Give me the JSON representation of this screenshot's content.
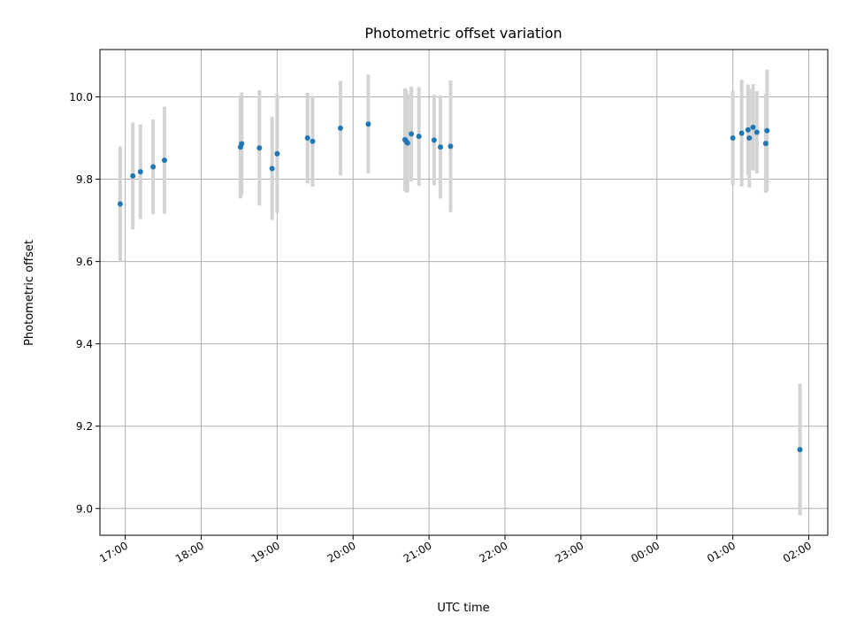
{
  "chart_data": {
    "type": "scatter",
    "title": "Photometric offset variation",
    "xlabel": "UTC time",
    "ylabel": "Photometric offset",
    "grid": true,
    "xlim": [
      "16:40",
      "02:15"
    ],
    "ylim": [
      8.935,
      10.115
    ],
    "x_ticks": [
      "17:00",
      "18:00",
      "19:00",
      "20:00",
      "21:00",
      "22:00",
      "23:00",
      "00:00",
      "01:00",
      "02:00"
    ],
    "y_ticks": [
      "9.0",
      "9.2",
      "9.4",
      "9.6",
      "9.8",
      "10.0"
    ],
    "marker_color": "#1f77b4",
    "errorbar_color": "#d3d3d3",
    "points": [
      {
        "t": "16:56",
        "y": 9.74,
        "err": 0.14
      },
      {
        "t": "17:06",
        "y": 9.808,
        "err": 0.13
      },
      {
        "t": "17:12",
        "y": 9.818,
        "err": 0.115
      },
      {
        "t": "17:22",
        "y": 9.83,
        "err": 0.115
      },
      {
        "t": "17:31",
        "y": 9.846,
        "err": 0.13
      },
      {
        "t": "18:31",
        "y": 9.878,
        "err": 0.125
      },
      {
        "t": "18:32",
        "y": 9.886,
        "err": 0.125
      },
      {
        "t": "18:46",
        "y": 9.876,
        "err": 0.14
      },
      {
        "t": "18:56",
        "y": 9.826,
        "err": 0.125
      },
      {
        "t": "19:00",
        "y": 9.862,
        "err": 0.145
      },
      {
        "t": "19:24",
        "y": 9.9,
        "err": 0.11
      },
      {
        "t": "19:28",
        "y": 9.892,
        "err": 0.11
      },
      {
        "t": "19:50",
        "y": 9.924,
        "err": 0.115
      },
      {
        "t": "20:12",
        "y": 9.934,
        "err": 0.12
      },
      {
        "t": "20:41",
        "y": 9.896,
        "err": 0.125
      },
      {
        "t": "20:42",
        "y": 9.892,
        "err": 0.125
      },
      {
        "t": "20:43",
        "y": 9.888,
        "err": 0.12
      },
      {
        "t": "20:46",
        "y": 9.91,
        "err": 0.115
      },
      {
        "t": "20:52",
        "y": 9.904,
        "err": 0.12
      },
      {
        "t": "21:04",
        "y": 9.895,
        "err": 0.11
      },
      {
        "t": "21:09",
        "y": 9.878,
        "err": 0.125
      },
      {
        "t": "21:17",
        "y": 9.88,
        "err": 0.16
      },
      {
        "t": "01:00",
        "y": 9.9,
        "err": 0.115
      },
      {
        "t": "01:07",
        "y": 9.912,
        "err": 0.13
      },
      {
        "t": "01:12",
        "y": 9.92,
        "err": 0.11
      },
      {
        "t": "01:13",
        "y": 9.9,
        "err": 0.12
      },
      {
        "t": "01:16",
        "y": 9.926,
        "err": 0.105
      },
      {
        "t": "01:19",
        "y": 9.914,
        "err": 0.1
      },
      {
        "t": "01:26",
        "y": 9.887,
        "err": 0.12
      },
      {
        "t": "01:27",
        "y": 9.918,
        "err": 0.148
      },
      {
        "t": "01:53",
        "y": 9.143,
        "err": 0.16
      }
    ]
  }
}
